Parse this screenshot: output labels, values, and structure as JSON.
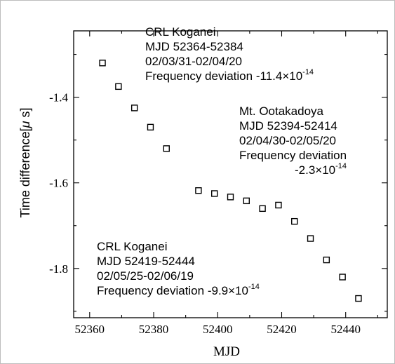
{
  "chart_data": {
    "type": "scatter",
    "xlabel": "MJD",
    "ylabel_main": "Time difference[",
    "ylabel_mu": "μ",
    "ylabel_end": " s]",
    "xlim": [
      52355,
      52453
    ],
    "ylim": [
      -1.915,
      -1.245
    ],
    "xticks": [
      52360,
      52380,
      52400,
      52420,
      52440
    ],
    "yticks": [
      -1.4,
      -1.6,
      -1.8
    ],
    "ytick_labels": [
      "-1.4",
      "-1.6",
      "-1.8"
    ],
    "grid": false,
    "marker": "open-square",
    "points": [
      {
        "x": 52364,
        "y": -1.32
      },
      {
        "x": 52369,
        "y": -1.375
      },
      {
        "x": 52374,
        "y": -1.425
      },
      {
        "x": 52379,
        "y": -1.47
      },
      {
        "x": 52384,
        "y": -1.52
      },
      {
        "x": 52394,
        "y": -1.618
      },
      {
        "x": 52399,
        "y": -1.625
      },
      {
        "x": 52404,
        "y": -1.633
      },
      {
        "x": 52409,
        "y": -1.642
      },
      {
        "x": 52414,
        "y": -1.66
      },
      {
        "x": 52419,
        "y": -1.652
      },
      {
        "x": 52424,
        "y": -1.69
      },
      {
        "x": 52429,
        "y": -1.73
      },
      {
        "x": 52434,
        "y": -1.78
      },
      {
        "x": 52439,
        "y": -1.82
      },
      {
        "x": 52444,
        "y": -1.87
      }
    ],
    "annotations": [
      {
        "station": "CRL Koganei",
        "mjd": "MJD  52364-52384",
        "dates": "02/03/31-02/04/20",
        "freq_prefix": "Frequency deviation ",
        "freq_value": "-11.4×10",
        "freq_exp": "-14"
      },
      {
        "station": "Mt. Ootakadoya",
        "mjd": "MJD  52394-52414",
        "dates": "02/04/30-02/05/20",
        "freq_prefix": "Frequency deviation",
        "freq_value": "-2.3×10",
        "freq_exp": "-14"
      },
      {
        "station": "CRL Koganei",
        "mjd": "MJD  52419-52444",
        "dates": "02/05/25-02/06/19",
        "freq_prefix": "Frequency deviation ",
        "freq_value": "-9.9×10",
        "freq_exp": "-14"
      }
    ]
  }
}
